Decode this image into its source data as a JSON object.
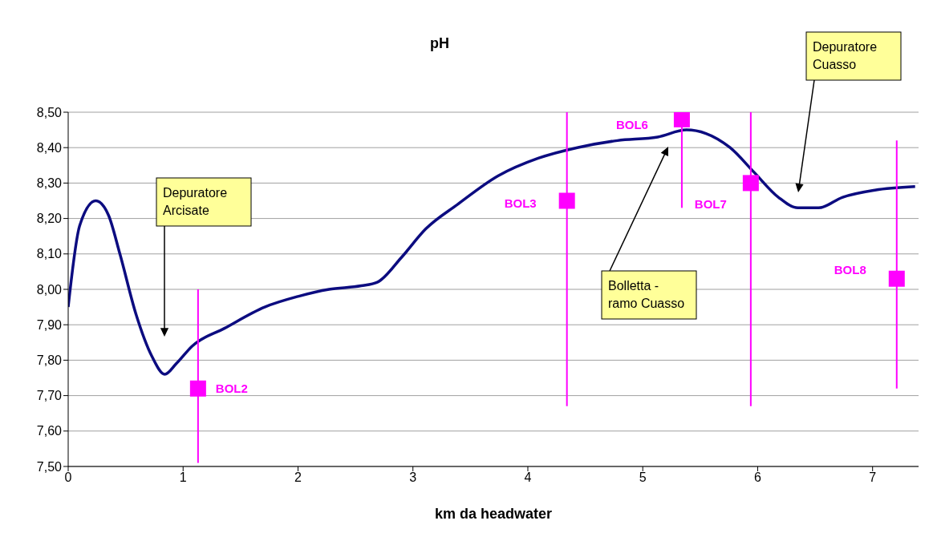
{
  "chart_data": {
    "type": "line",
    "title": "pH",
    "xlabel": "km da headwater",
    "xlim": [
      0,
      7.4
    ],
    "xticks": [
      0,
      1,
      2,
      3,
      4,
      5,
      6,
      7
    ],
    "ylim": [
      7.5,
      8.5
    ],
    "yticks": [
      {
        "value": 7.5,
        "label": "7,50"
      },
      {
        "value": 7.6,
        "label": "7,60"
      },
      {
        "value": 7.7,
        "label": "7,70"
      },
      {
        "value": 7.8,
        "label": "7,80"
      },
      {
        "value": 7.9,
        "label": "7,90"
      },
      {
        "value": 8.0,
        "label": "8,00"
      },
      {
        "value": 8.1,
        "label": "8,10"
      },
      {
        "value": 8.2,
        "label": "8,20"
      },
      {
        "value": 8.3,
        "label": "8,30"
      },
      {
        "value": 8.4,
        "label": "8,40"
      },
      {
        "value": 8.5,
        "label": "8,50"
      }
    ],
    "grid": "y",
    "legend": false,
    "series": [
      {
        "color": "#0c0c80",
        "marker": "none",
        "x": [
          0,
          0.1,
          0.24,
          0.35,
          0.45,
          0.59,
          0.73,
          0.84,
          0.94,
          1.08,
          1.36,
          1.71,
          2.0,
          2.27,
          2.55,
          2.69,
          2.9,
          3.11,
          3.39,
          3.74,
          4.09,
          4.43,
          4.78,
          5.13,
          5.38,
          5.55,
          5.76,
          5.97,
          6.18,
          6.35,
          6.53,
          6.74,
          7.02,
          7.37
        ],
        "values": [
          7.95,
          8.18,
          8.25,
          8.21,
          8.1,
          7.93,
          7.81,
          7.76,
          7.79,
          7.84,
          7.89,
          7.95,
          7.98,
          8.0,
          8.01,
          8.02,
          8.09,
          8.17,
          8.24,
          8.32,
          8.37,
          8.4,
          8.42,
          8.43,
          8.45,
          8.44,
          8.4,
          8.33,
          8.26,
          8.23,
          8.23,
          8.26,
          8.28,
          8.29
        ]
      },
      {
        "type": "scatter",
        "name": "BOL2",
        "color": "#ff00ff",
        "marker": "square",
        "x": [
          1.13
        ],
        "values": [
          7.72
        ],
        "errors": [
          [
            7.51,
            8.0
          ]
        ]
      },
      {
        "type": "scatter",
        "name": "BOL3",
        "color": "#ff00ff",
        "marker": "square",
        "x": [
          4.34
        ],
        "values": [
          8.25
        ],
        "errors": [
          [
            7.67,
            8.5
          ]
        ]
      },
      {
        "type": "scatter",
        "name": "BOL6",
        "color": "#ff00ff",
        "marker": "square",
        "x": [
          5.34
        ],
        "values": [
          8.48
        ],
        "errors": [
          [
            8.23,
            8.48
          ]
        ]
      },
      {
        "type": "scatter",
        "name": "BOL7",
        "color": "#ff00ff",
        "marker": "square",
        "x": [
          5.94
        ],
        "values": [
          8.3
        ],
        "errors": [
          [
            7.67,
            8.5
          ]
        ]
      },
      {
        "type": "scatter",
        "name": "BOL8",
        "color": "#ff00ff",
        "marker": "square",
        "x": [
          7.21
        ],
        "values": [
          8.03
        ],
        "errors": [
          [
            7.72,
            8.42
          ]
        ]
      }
    ],
    "annotations": [
      "Depuratore Arcisate",
      "Bolletta - ramo Cuasso",
      "Depuratore Cuasso"
    ]
  }
}
